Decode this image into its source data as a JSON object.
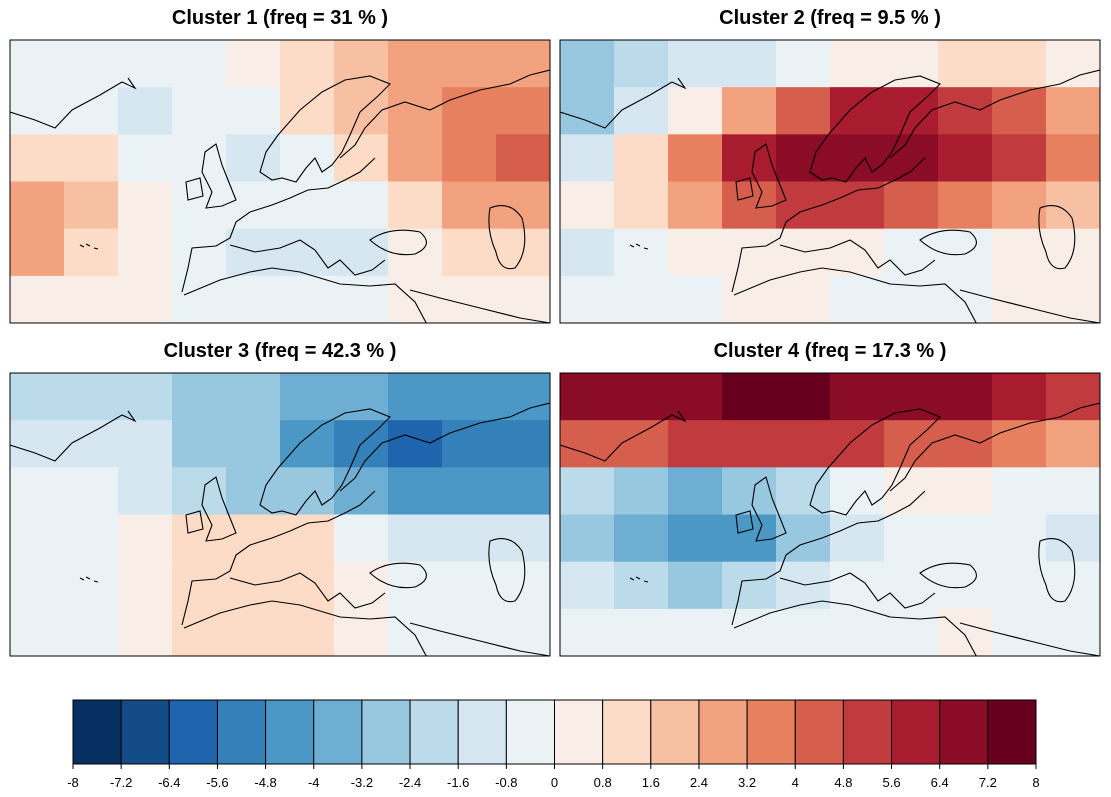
{
  "panels": [
    {
      "title": "Cluster 1 (freq = 31 % )",
      "grid": [
        [
          -0.5,
          -0.5,
          -0.3,
          -0.3,
          0.5,
          1.5,
          2.0,
          2.4,
          2.6,
          2.8
        ],
        [
          -0.5,
          -0.8,
          -1.0,
          -0.6,
          -0.3,
          0.8,
          2.0,
          3.0,
          3.5,
          3.8
        ],
        [
          1.0,
          0.8,
          -0.3,
          -0.8,
          -1.0,
          -0.5,
          1.0,
          3.0,
          3.8,
          4.2
        ],
        [
          3.0,
          2.0,
          0.5,
          -0.6,
          -0.8,
          -0.8,
          -0.3,
          1.5,
          2.5,
          3.0
        ],
        [
          2.5,
          1.5,
          0.3,
          -0.5,
          -1.0,
          -1.2,
          -0.9,
          0.2,
          1.0,
          1.0
        ],
        [
          0.5,
          0.3,
          0.2,
          -0.3,
          -0.6,
          -0.8,
          -0.6,
          0.2,
          0.3,
          0.3
        ]
      ]
    },
    {
      "title": "Cluster 2 (freq = 9.5 % )",
      "grid": [
        [
          -2.5,
          -2.0,
          -1.5,
          -1.0,
          -0.5,
          0.3,
          0.5,
          0.8,
          0.8,
          0.5
        ],
        [
          -2.5,
          -1.6,
          0.5,
          2.5,
          4.5,
          5.8,
          6.0,
          5.5,
          4.5,
          3.0
        ],
        [
          -1.0,
          1.0,
          3.5,
          5.8,
          6.5,
          7.0,
          6.8,
          6.0,
          5.0,
          3.5
        ],
        [
          0.2,
          1.5,
          3.0,
          4.5,
          5.0,
          5.0,
          4.5,
          3.5,
          2.5,
          2.0
        ],
        [
          -1.0,
          -0.5,
          0.2,
          0.5,
          0.3,
          0.2,
          -0.5,
          -0.3,
          0.2,
          0.5
        ],
        [
          -0.8,
          -0.8,
          -0.3,
          0.3,
          0.2,
          -0.5,
          -0.8,
          -0.3,
          0.2,
          0.3
        ]
      ]
    },
    {
      "title": "Cluster 3 (freq = 42.3 % )",
      "grid": [
        [
          -1.8,
          -1.8,
          -2.2,
          -2.5,
          -3.0,
          -3.5,
          -4.0,
          -4.5,
          -4.5,
          -4.5
        ],
        [
          -1.5,
          -1.2,
          -1.6,
          -2.5,
          -3.2,
          -4.5,
          -5.5,
          -5.8,
          -5.5,
          -5.2
        ],
        [
          -0.5,
          -0.8,
          -1.5,
          -2.0,
          -2.5,
          -3.2,
          -4.0,
          -4.5,
          -4.5,
          -4.2
        ],
        [
          -0.8,
          -0.5,
          0.3,
          1.0,
          1.2,
          0.8,
          -0.3,
          -1.0,
          -1.5,
          -1.5
        ],
        [
          -0.5,
          -0.3,
          0.5,
          1.2,
          1.5,
          1.2,
          0.5,
          -0.3,
          -0.5,
          -0.5
        ],
        [
          -0.3,
          -0.2,
          0.3,
          0.8,
          1.0,
          0.8,
          0.3,
          -0.3,
          -0.5,
          -0.5
        ]
      ]
    },
    {
      "title": "Cluster 4 (freq = 17.3 % )",
      "grid": [
        [
          6.5,
          6.8,
          7.0,
          7.5,
          7.5,
          7.0,
          6.8,
          6.5,
          6.0,
          5.5
        ],
        [
          4.0,
          4.5,
          5.0,
          5.5,
          5.5,
          5.0,
          4.5,
          4.0,
          3.5,
          3.0
        ],
        [
          -2.0,
          -3.0,
          -3.5,
          -3.0,
          -2.0,
          -0.5,
          0.5,
          0.3,
          -0.5,
          -0.8
        ],
        [
          -3.0,
          -4.0,
          -4.5,
          -4.2,
          -2.5,
          -1.0,
          -0.5,
          -0.3,
          -0.8,
          -1.0
        ],
        [
          -1.0,
          -2.0,
          -2.5,
          -2.2,
          -1.2,
          -0.8,
          -0.5,
          -0.3,
          -0.5,
          -0.5
        ],
        [
          -0.5,
          -0.8,
          -0.8,
          -0.8,
          -0.6,
          -0.5,
          -0.3,
          0.2,
          -0.3,
          -0.3
        ]
      ]
    }
  ],
  "colorbar": {
    "colors": [
      "#053061",
      "#134b87",
      "#1f64ad",
      "#3480b9",
      "#4b98c7",
      "#6eaed2",
      "#98c8e0",
      "#bbdaea",
      "#d6e7f1",
      "#ebf2f6",
      "#f9ede7",
      "#fcdbc7",
      "#f8c0a3",
      "#f2a27f",
      "#e6805f",
      "#d55f4c",
      "#c13a3e",
      "#a91b2e",
      "#8a0c27",
      "#67001f"
    ],
    "ticks": [
      -8,
      -7.2,
      -6.4,
      -5.6,
      -4.8,
      -4,
      -3.2,
      -2.4,
      -1.6,
      -0.8,
      0,
      0.8,
      1.6,
      2.4,
      3.2,
      4,
      4.8,
      5.6,
      6.4,
      7.2,
      8
    ]
  }
}
